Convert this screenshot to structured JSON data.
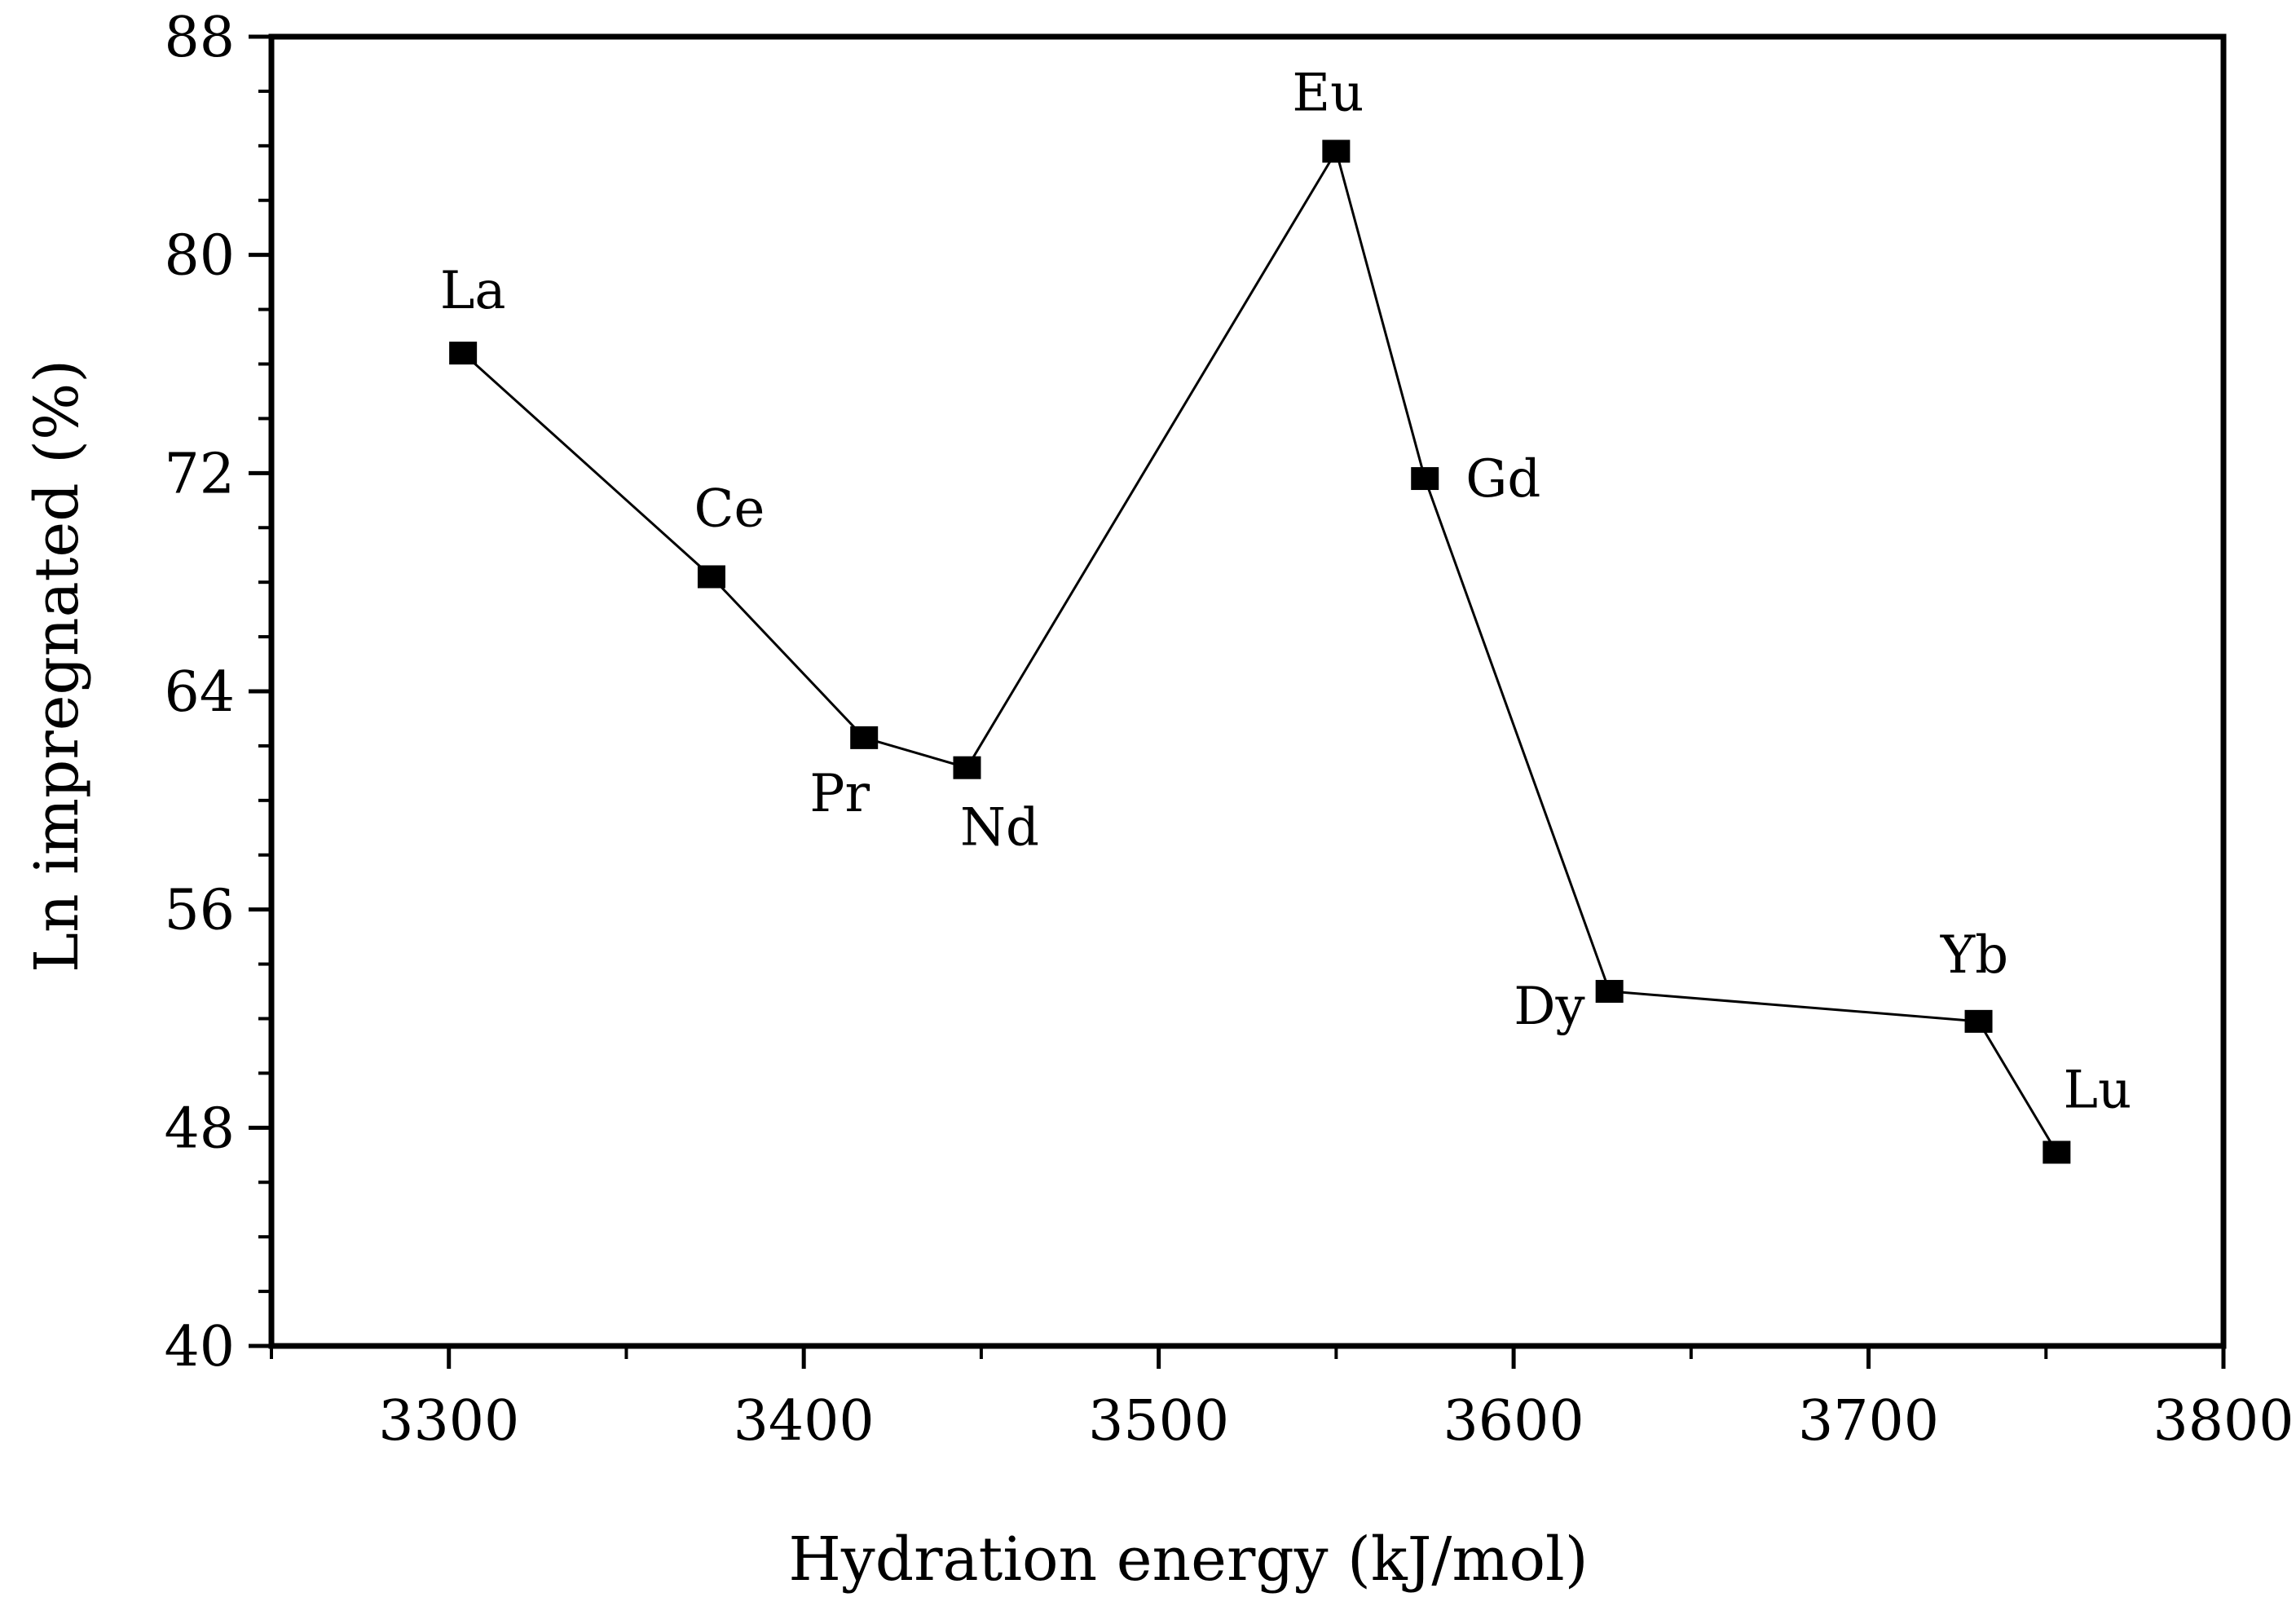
{
  "chart_data": {
    "type": "line",
    "title": "",
    "xlabel": "Hydration energy (kJ/mol)",
    "ylabel": "Ln impregnated (%)",
    "xlim": [
      3250,
      3800
    ],
    "ylim": [
      40,
      88
    ],
    "x_ticks": [
      "3300",
      "3400",
      "3500",
      "3600",
      "3700",
      "3800"
    ],
    "y_ticks": [
      "40",
      "48",
      "56",
      "64",
      "72",
      "80",
      "88"
    ],
    "grid": false,
    "legend": "none",
    "series": [
      {
        "name": "Ln",
        "points": [
          {
            "label": "La",
            "x": 3304,
            "y": 76.4
          },
          {
            "label": "Ce",
            "x": 3374,
            "y": 68.2
          },
          {
            "label": "Pr",
            "x": 3417,
            "y": 62.3
          },
          {
            "label": "Nd",
            "x": 3446,
            "y": 61.2
          },
          {
            "label": "Eu",
            "x": 3550,
            "y": 83.8
          },
          {
            "label": "Gd",
            "x": 3575,
            "y": 71.8
          },
          {
            "label": "Dy",
            "x": 3627,
            "y": 53.0
          },
          {
            "label": "Yb",
            "x": 3731,
            "y": 51.9
          },
          {
            "label": "Lu",
            "x": 3753,
            "y": 47.1
          }
        ]
      }
    ]
  }
}
